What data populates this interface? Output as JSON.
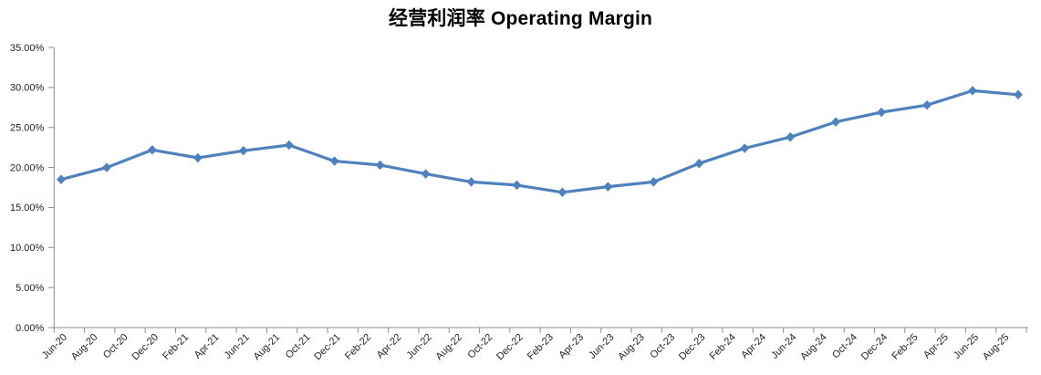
{
  "page": {
    "background": "#FFFFFF"
  },
  "chart_data": {
    "type": "line",
    "title": "经营利润率 Operating Margin",
    "xlabel": "",
    "ylabel": "",
    "ylim": [
      0,
      35
    ],
    "y_tick_step": 5,
    "y_tick_labels": [
      "0.00%",
      "5.00%",
      "10.00%",
      "15.00%",
      "20.00%",
      "25.00%",
      "30.00%",
      "35.00%"
    ],
    "x_tick_labels": [
      "Jun-20",
      "Aug-20",
      "Oct-20",
      "Dec-20",
      "Feb-21",
      "Apr-21",
      "Jun-21",
      "Aug-21",
      "Oct-21",
      "Dec-21",
      "Feb-22",
      "Apr-22",
      "Jun-22",
      "Aug-22",
      "Oct-22",
      "Dec-22",
      "Feb-23",
      "Apr-23",
      "Jun-23",
      "Aug-23",
      "Oct-23",
      "Dec-23",
      "Feb-24",
      "Apr-24",
      "Jun-24",
      "Aug-24",
      "Oct-24",
      "Dec-24",
      "Feb-25",
      "Apr-25",
      "Jun-25",
      "Aug-25"
    ],
    "grid": false,
    "legend": false,
    "axis_color": "#8C8C8C",
    "label_color": "#1F1F1F",
    "series": [
      {
        "name": "经营利润率 Operating Margin",
        "color": "#4F81BD",
        "marker": "diamond",
        "x": [
          "Jun-20",
          "Sep-20",
          "Dec-20",
          "Mar-21",
          "Jun-21",
          "Sep-21",
          "Dec-21",
          "Mar-22",
          "Jun-22",
          "Sep-22",
          "Dec-22",
          "Mar-23",
          "Jun-23",
          "Sep-23",
          "Dec-23",
          "Mar-24",
          "Jun-24",
          "Sep-24",
          "Dec-24",
          "Mar-25",
          "Jun-25",
          "Sep-25"
        ],
        "values": [
          18.5,
          20.0,
          22.2,
          21.2,
          22.1,
          22.8,
          20.8,
          20.3,
          19.2,
          18.2,
          17.8,
          16.9,
          17.6,
          18.2,
          20.5,
          22.4,
          23.8,
          25.7,
          26.9,
          27.8,
          29.6,
          29.1
        ]
      }
    ]
  }
}
